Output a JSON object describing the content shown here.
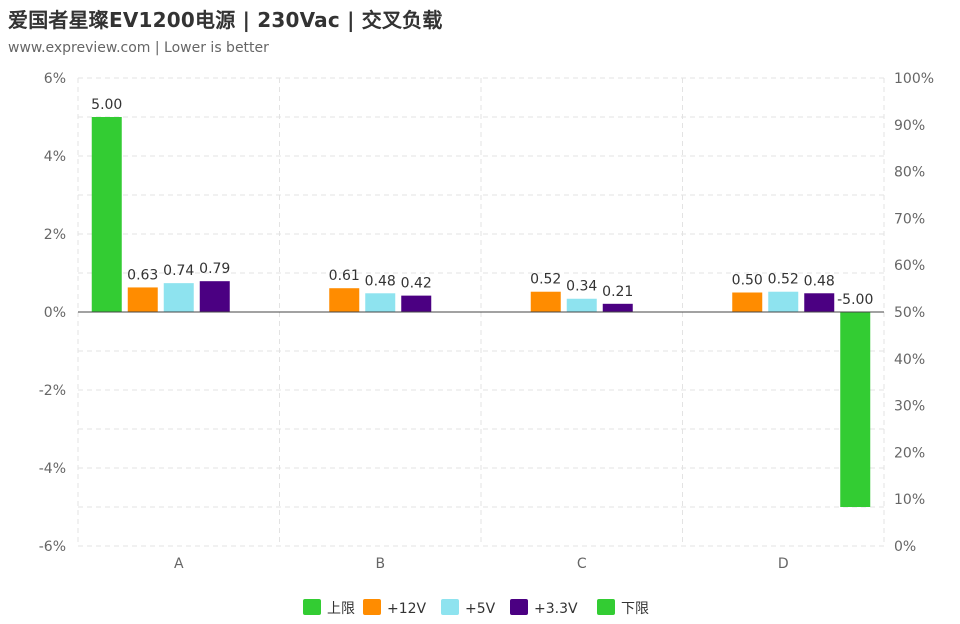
{
  "title": "爱国者星璨EV1200电源 | 230Vac | 交叉负载",
  "subtitle": "www.expreview.com  |  Lower is better",
  "chart_data": {
    "type": "bar",
    "categories": [
      "A",
      "B",
      "C",
      "D"
    ],
    "series": [
      {
        "name": "上限",
        "color": "#33cc33",
        "values": [
          5.0,
          null,
          null,
          null
        ]
      },
      {
        "name": "+12V",
        "color": "#ff8c00",
        "values": [
          0.63,
          0.61,
          0.52,
          0.5
        ]
      },
      {
        "name": "+5V",
        "color": "#8ee3ef",
        "values": [
          0.74,
          0.48,
          0.34,
          0.52
        ]
      },
      {
        "name": "+3.3V",
        "color": "#4b0082",
        "values": [
          0.79,
          0.42,
          0.21,
          0.48
        ]
      },
      {
        "name": "下限",
        "color": "#33cc33",
        "values": [
          null,
          null,
          null,
          -5.0
        ]
      }
    ],
    "y_left": {
      "min": -6,
      "max": 6,
      "step": 2,
      "tick_labels": [
        "-6%",
        "-4%",
        "-2%",
        "0%",
        "2%",
        "4%",
        "6%"
      ]
    },
    "y_right": {
      "min": 0,
      "max": 100,
      "step": 10,
      "tick_labels": [
        "0%",
        "10%",
        "20%",
        "30%",
        "40%",
        "50%",
        "60%",
        "70%",
        "80%",
        "90%",
        "100%"
      ]
    },
    "grid": true,
    "legend_position": "bottom-center"
  }
}
